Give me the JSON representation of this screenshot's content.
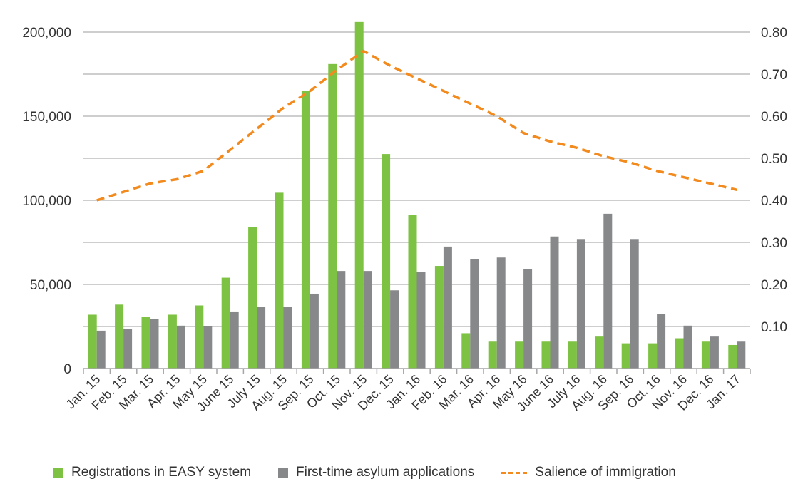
{
  "chart_data": {
    "type": "bar",
    "categories": [
      "Jan. 15",
      "Feb. 15",
      "Mar. 15",
      "Apr. 15",
      "May 15",
      "June 15",
      "July 15",
      "Aug. 15",
      "Sep. 15",
      "Oct. 15",
      "Nov. 15",
      "Dec. 15",
      "Jan. 16",
      "Feb. 16",
      "Mar. 16",
      "Apr. 16",
      "May 16",
      "June 16",
      "July 16",
      "Aug. 16",
      "Sep. 16",
      "Oct. 16",
      "Nov. 16",
      "Dec. 16",
      "Jan. 17"
    ],
    "series": [
      {
        "name": "Registrations in EASY system",
        "type": "bar",
        "axis": "left",
        "color": "#7DC242",
        "values": [
          32000,
          38000,
          30500,
          32000,
          37500,
          54000,
          84000,
          104500,
          165000,
          181000,
          206000,
          127500,
          91500,
          61000,
          21000,
          16000,
          16000,
          16000,
          16000,
          19000,
          15000,
          15000,
          18000,
          16000,
          14000
        ]
      },
      {
        "name": "First-time asylum applications",
        "type": "bar",
        "axis": "left",
        "color": "#87888A",
        "values": [
          22500,
          23500,
          29500,
          25500,
          25000,
          33500,
          36500,
          36500,
          44500,
          58000,
          58000,
          46500,
          57500,
          72500,
          65000,
          66000,
          59000,
          78500,
          77000,
          92000,
          77000,
          32500,
          25500,
          19000,
          16000
        ]
      },
      {
        "name": "Salience of immigration",
        "type": "line",
        "style": "dashed",
        "axis": "right",
        "color": "#F28A1E",
        "values": [
          0.4,
          0.42,
          0.44,
          0.45,
          0.47,
          0.52,
          0.57,
          0.62,
          0.66,
          0.71,
          0.755,
          0.72,
          0.69,
          0.66,
          0.63,
          0.6,
          0.56,
          0.54,
          0.525,
          0.505,
          0.49,
          0.47,
          0.455,
          0.44,
          0.425
        ]
      }
    ],
    "y_left": {
      "lim": [
        0,
        200000
      ],
      "ticks": [
        0,
        50000,
        100000,
        150000,
        200000
      ],
      "tick_labels": [
        "0",
        "50,000",
        "100,000",
        "150,000",
        "200,000"
      ]
    },
    "y_right": {
      "lim": [
        0,
        0.8
      ],
      "ticks": [
        0.1,
        0.2,
        0.3,
        0.4,
        0.5,
        0.6,
        0.7,
        0.8
      ],
      "tick_labels": [
        "0.10",
        "0.20",
        "0.30",
        "0.40",
        "0.50",
        "0.60",
        "0.70",
        "0.80"
      ]
    },
    "gridlines_left": [
      25000,
      50000,
      75000,
      100000,
      125000,
      150000,
      175000,
      200000
    ],
    "grid": true,
    "legend_position": "bottom",
    "title": "",
    "xlabel": "",
    "ylabel": ""
  }
}
